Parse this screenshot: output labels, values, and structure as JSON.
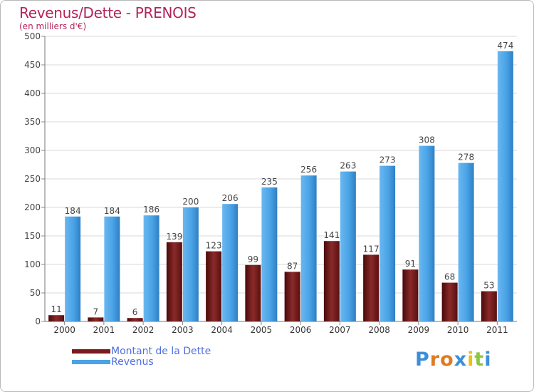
{
  "chart_data": {
    "type": "bar",
    "title": "Revenus/Dette - PRENOIS",
    "subtitle": "(en milliers d'€)",
    "categories": [
      "2000",
      "2001",
      "2002",
      "2003",
      "2004",
      "2005",
      "2006",
      "2007",
      "2008",
      "2009",
      "2010",
      "2011"
    ],
    "series": [
      {
        "name": "Montant de la Dette",
        "color": "#7a1a1a",
        "values": [
          11,
          7,
          6,
          139,
          123,
          99,
          87,
          141,
          117,
          91,
          68,
          53
        ]
      },
      {
        "name": "Revenus",
        "color": "#4aa3e6",
        "values": [
          184,
          184,
          186,
          200,
          206,
          235,
          256,
          263,
          273,
          308,
          278,
          474
        ]
      }
    ],
    "ylim": [
      0,
      500
    ],
    "yticks": [
      0,
      50,
      100,
      150,
      200,
      250,
      300,
      350,
      400,
      450,
      500
    ],
    "xlabel": "",
    "ylabel": "",
    "grid": true,
    "legend_position": "bottom-left"
  },
  "branding": {
    "logo_letters": [
      "P",
      "r",
      "o",
      "x",
      "i",
      "t",
      "i"
    ],
    "logo_colors": [
      "#3c8fd8",
      "#e07a1f",
      "#e07a1f",
      "#3c8fd8",
      "#e8c21a",
      "#8dc63f",
      "#3c8fd8"
    ]
  }
}
